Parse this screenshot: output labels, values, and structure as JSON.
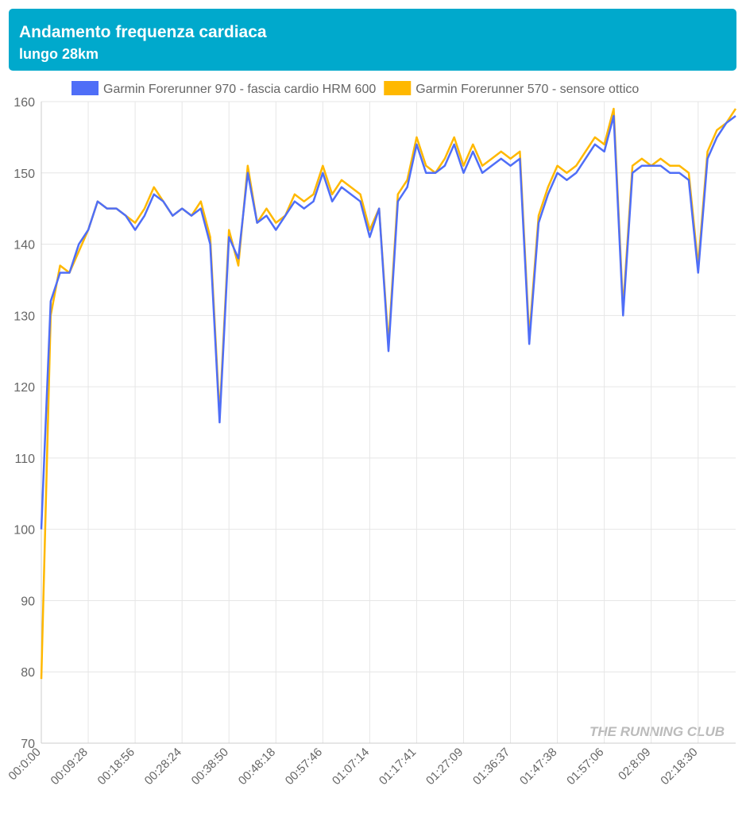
{
  "chart_data": {
    "type": "line",
    "title": "Andamento frequenza cardiaca",
    "subtitle": "lungo 28km",
    "watermark": "THE RUNNING CLUB",
    "categories": [
      "00:0:00",
      null,
      null,
      null,
      null,
      "00:09:28",
      null,
      null,
      null,
      null,
      "00:18:56",
      null,
      null,
      null,
      null,
      "00:28:24",
      null,
      null,
      null,
      null,
      "00:38:50",
      null,
      null,
      null,
      null,
      "00:48:18",
      null,
      null,
      null,
      null,
      "00:57:46",
      null,
      null,
      null,
      null,
      "01:07:14",
      null,
      null,
      null,
      null,
      "01:17:41",
      null,
      null,
      null,
      null,
      "01:27:09",
      null,
      null,
      null,
      null,
      "01:36:37",
      null,
      null,
      null,
      null,
      "01:47:38",
      null,
      null,
      null,
      null,
      "01:57:06",
      null,
      null,
      null,
      null,
      "02:8:09",
      null,
      null,
      null,
      null,
      "02:18:30",
      null,
      null,
      null,
      null
    ],
    "series": [
      {
        "name": "Garmin Forerunner 570 - sensore ottico",
        "color": "#ffb800",
        "values": [
          79,
          130,
          137,
          136,
          139,
          142,
          146,
          145,
          145,
          144,
          143,
          145,
          148,
          146,
          144,
          145,
          144,
          146,
          141,
          116,
          142,
          137,
          151,
          143,
          145,
          143,
          144,
          147,
          146,
          147,
          151,
          147,
          149,
          148,
          147,
          142,
          145,
          126,
          147,
          149,
          155,
          151,
          150,
          152,
          155,
          151,
          154,
          151,
          152,
          153,
          152,
          153,
          127,
          144,
          148,
          151,
          150,
          151,
          153,
          155,
          154,
          159,
          131,
          151,
          152,
          151,
          152,
          151,
          151,
          150,
          137,
          153,
          156,
          157,
          159
        ]
      },
      {
        "name": "Garmin Forerunner 970 - fascia cardio HRM 600",
        "color": "#4f6ef7",
        "values": [
          100,
          132,
          136,
          136,
          140,
          142,
          146,
          145,
          145,
          144,
          142,
          144,
          147,
          146,
          144,
          145,
          144,
          145,
          140,
          115,
          141,
          138,
          150,
          143,
          144,
          142,
          144,
          146,
          145,
          146,
          150,
          146,
          148,
          147,
          146,
          141,
          145,
          125,
          146,
          148,
          154,
          150,
          150,
          151,
          154,
          150,
          153,
          150,
          151,
          152,
          151,
          152,
          126,
          143,
          147,
          150,
          149,
          150,
          152,
          154,
          153,
          158,
          130,
          150,
          151,
          151,
          151,
          150,
          150,
          149,
          136,
          152,
          155,
          157,
          158
        ]
      }
    ],
    "ylim": [
      70,
      160
    ],
    "yticks": [
      70,
      80,
      90,
      100,
      110,
      120,
      130,
      140,
      150,
      160
    ],
    "grid": true,
    "legend": "top"
  }
}
